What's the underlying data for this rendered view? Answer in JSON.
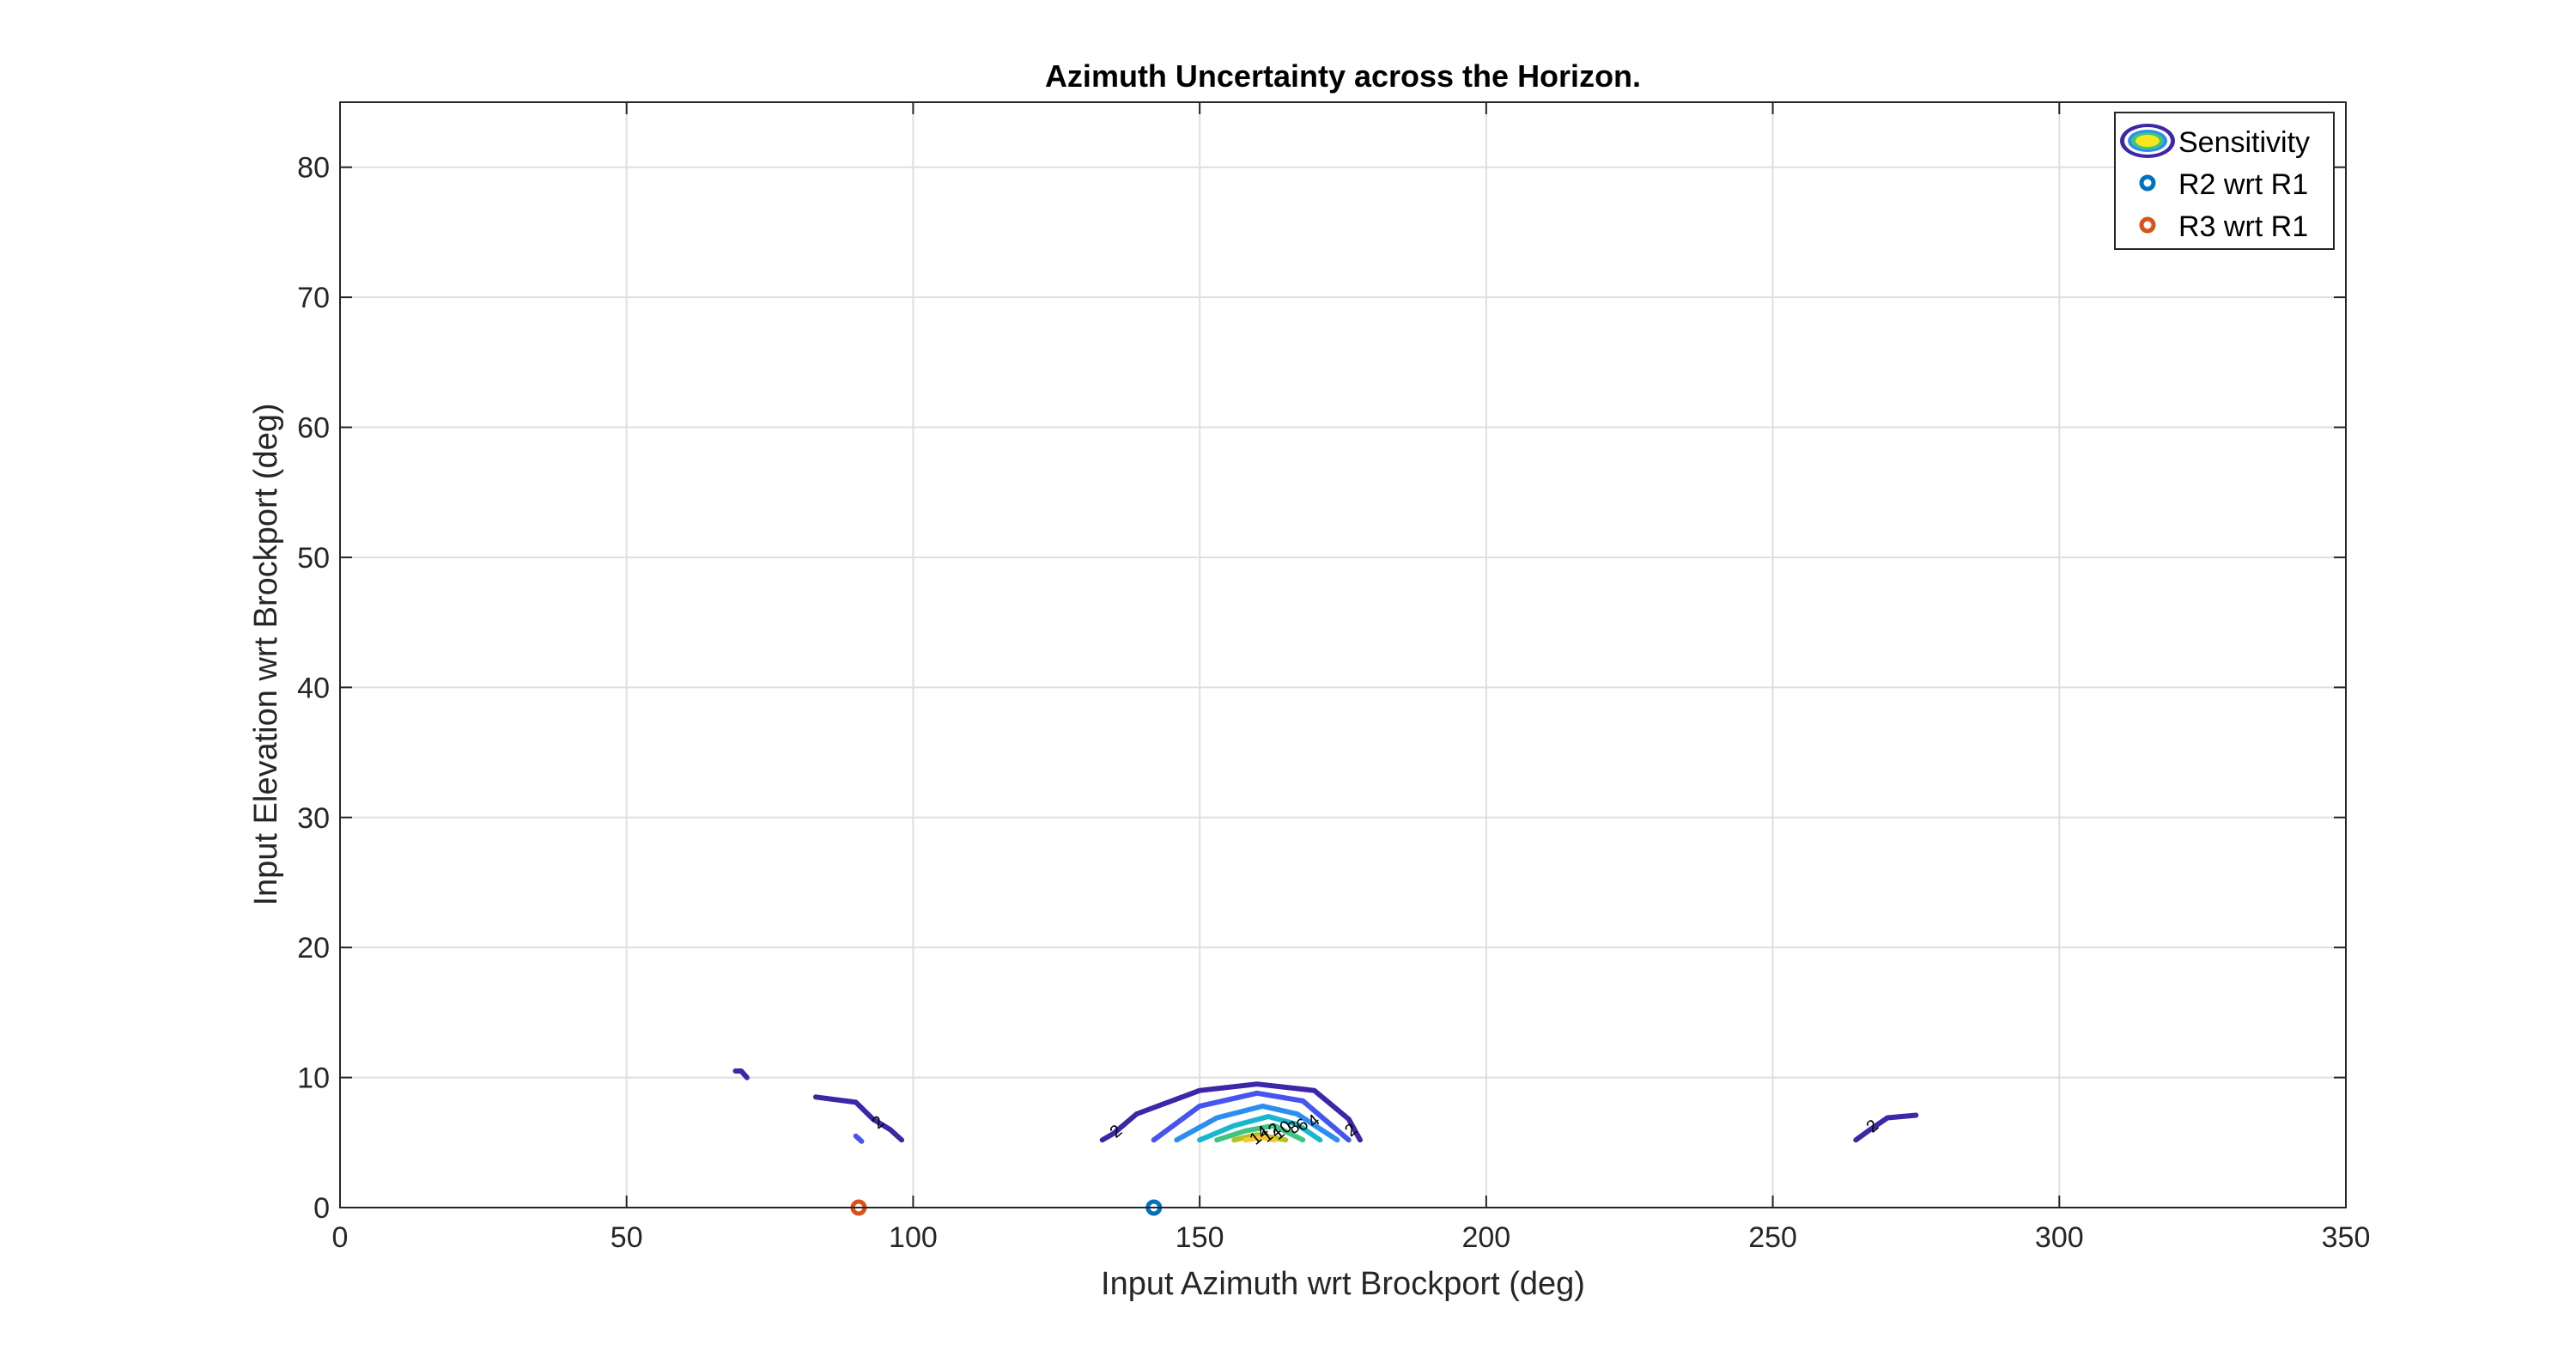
{
  "chart_data": {
    "type": "contour",
    "title": "Azimuth Uncertainty across the Horizon.",
    "xlabel": "Input Azimuth wrt Brockport (deg)",
    "ylabel": "Input Elevation wrt Brockport (deg)",
    "xlim": [
      0,
      350
    ],
    "ylim": [
      0,
      85
    ],
    "xticks": [
      0,
      50,
      100,
      150,
      200,
      250,
      300,
      350
    ],
    "yticks": [
      0,
      10,
      20,
      30,
      40,
      50,
      60,
      70,
      80
    ],
    "grid": true,
    "legend": {
      "placement": "top-right",
      "entries": [
        "Sensitivity",
        "R2 wrt R1",
        "R3 wrt R1"
      ]
    },
    "contours": [
      {
        "level": 2,
        "color": "#3e26a8",
        "paths": [
          [
            [
              69,
              10.5
            ],
            [
              70,
              10.5
            ],
            [
              71,
              10.0
            ]
          ],
          [
            [
              83,
              8.5
            ],
            [
              90,
              8.1
            ],
            [
              93,
              6.8
            ],
            [
              96,
              6.0
            ],
            [
              98,
              5.2
            ]
          ],
          [
            [
              133,
              5.2
            ],
            [
              135,
              5.7
            ],
            [
              139,
              7.2
            ],
            [
              150,
              9.0
            ],
            [
              160,
              9.5
            ],
            [
              170,
              9.0
            ],
            [
              176,
              6.8
            ],
            [
              178,
              5.2
            ]
          ],
          [
            [
              264.5,
              5.2
            ],
            [
              267,
              6.0
            ],
            [
              270,
              6.9
            ],
            [
              275,
              7.1
            ]
          ]
        ]
      },
      {
        "level": 4,
        "color": "#4755f0",
        "paths": [
          [
            [
              90,
              5.5
            ],
            [
              91,
              5.1
            ]
          ],
          [
            [
              142,
              5.2
            ],
            [
              150,
              7.8
            ],
            [
              160,
              8.8
            ],
            [
              168,
              8.2
            ],
            [
              176,
              5.2
            ]
          ]
        ]
      },
      {
        "level": 6,
        "color": "#2c8ef0",
        "paths": [
          [
            [
              146,
              5.2
            ],
            [
              153,
              6.9
            ],
            [
              161,
              7.8
            ],
            [
              167,
              7.2
            ],
            [
              174,
              5.2
            ]
          ]
        ]
      },
      {
        "level": 8,
        "color": "#18b7cf",
        "paths": [
          [
            [
              150,
              5.2
            ],
            [
              156,
              6.3
            ],
            [
              162,
              7.0
            ],
            [
              167,
              6.4
            ],
            [
              171,
              5.2
            ]
          ]
        ]
      },
      {
        "level": 10,
        "color": "#3fc482",
        "paths": [
          [
            [
              153,
              5.2
            ],
            [
              158,
              5.9
            ],
            [
              163,
              6.3
            ],
            [
              168,
              5.2
            ]
          ]
        ]
      },
      {
        "level": 12,
        "color": "#b4c31f",
        "paths": [
          [
            [
              156,
              5.2
            ],
            [
              160,
              5.6
            ],
            [
              165,
              5.2
            ]
          ]
        ]
      },
      {
        "level": 14,
        "color": "#fac82a",
        "paths": [
          [
            [
              158,
              5.2
            ],
            [
              161,
              5.4
            ],
            [
              163,
              5.2
            ]
          ]
        ]
      }
    ],
    "contour_labels": [
      {
        "text": "2",
        "x": 94,
        "y": 6.5
      },
      {
        "text": "2",
        "x": 135.5,
        "y": 5.8
      },
      {
        "text": "2",
        "x": 176.5,
        "y": 5.9
      },
      {
        "text": "2",
        "x": 267.5,
        "y": 6.2
      },
      {
        "text": "14",
        "x": 160.5,
        "y": 5.5
      },
      {
        "text": "12",
        "x": 162.5,
        "y": 5.7
      },
      {
        "text": "10",
        "x": 164.5,
        "y": 5.9
      },
      {
        "text": "8",
        "x": 166.5,
        "y": 6.1
      },
      {
        "text": "6",
        "x": 168,
        "y": 6.3
      },
      {
        "text": "4",
        "x": 170,
        "y": 6.6
      }
    ],
    "series": [
      {
        "name": "R2 wrt R1",
        "color": "#0072bd",
        "x": [
          142
        ],
        "y": [
          0
        ]
      },
      {
        "name": "R3 wrt R1",
        "color": "#d95319",
        "x": [
          90.5
        ],
        "y": [
          0
        ]
      }
    ]
  }
}
